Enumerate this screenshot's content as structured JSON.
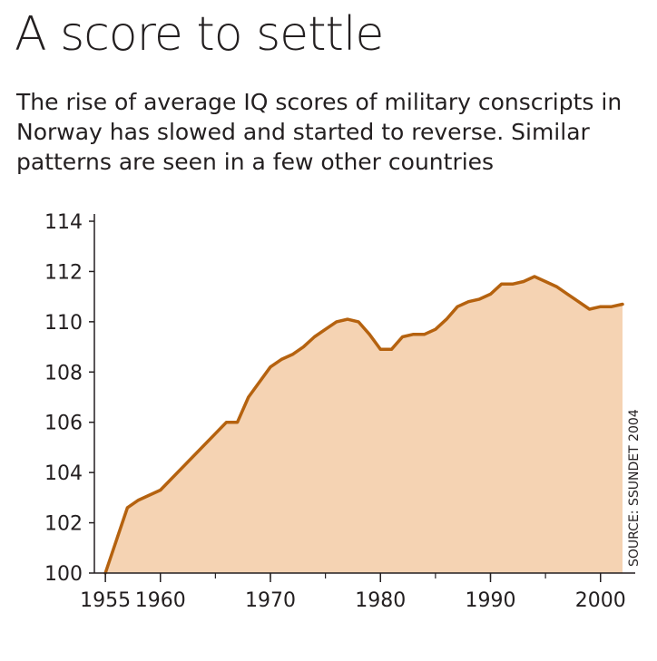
{
  "title": "A score to settle",
  "subtitle": "The rise of average IQ scores of military conscripts in Norway has slowed and started to reverse. Similar patterns are seen in a few other countries",
  "source": "SOURCE: SSUNDET 2004",
  "colors": {
    "line": "#b5620f",
    "fill": "#f5d3b3",
    "axis": "#231f20"
  },
  "chart_data": {
    "type": "area",
    "title": "A score to settle",
    "xlabel": "",
    "ylabel": "",
    "xlim": [
      1954,
      2002
    ],
    "ylim": [
      100,
      114
    ],
    "x_ticks": [
      1955,
      1960,
      1970,
      1980,
      1990,
      2000
    ],
    "y_ticks": [
      100,
      102,
      104,
      106,
      108,
      110,
      112,
      114
    ],
    "grid": false,
    "series": [
      {
        "x": [
          1955,
          1957,
          1958,
          1960,
          1966,
          1967,
          1968,
          1970,
          1971,
          1972,
          1973,
          1974,
          1975,
          1976,
          1977,
          1978,
          1979,
          1980,
          1981,
          1982,
          1983,
          1984,
          1985,
          1986,
          1987,
          1988,
          1989,
          1990,
          1991,
          1992,
          1993,
          1994,
          1995,
          1996,
          1997,
          1998,
          1999,
          2000,
          2001,
          2002
        ],
        "y": [
          100.0,
          102.6,
          102.9,
          103.3,
          106.0,
          106.0,
          107.0,
          108.2,
          108.5,
          108.7,
          109.0,
          109.4,
          109.7,
          110.0,
          110.1,
          110.0,
          109.5,
          108.9,
          108.9,
          109.4,
          109.5,
          109.5,
          109.7,
          110.1,
          110.6,
          110.8,
          110.9,
          111.1,
          111.5,
          111.5,
          111.6,
          111.8,
          111.6,
          111.4,
          111.1,
          110.8,
          110.5,
          110.6,
          110.6,
          110.7
        ]
      }
    ]
  }
}
